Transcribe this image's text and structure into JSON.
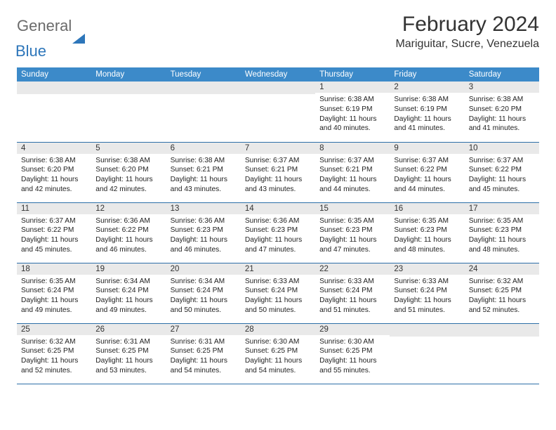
{
  "brand": {
    "part1": "General",
    "part2": "Blue"
  },
  "title": "February 2024",
  "location": "Mariguitar, Sucre, Venezuela",
  "colors": {
    "header_bg": "#3c8ac9",
    "header_fg": "#ffffff",
    "daynum_bg": "#e9e9e9",
    "row_border": "#2d6fa8",
    "brand_gray": "#6b6b6b",
    "brand_blue": "#2d76ba"
  },
  "day_names": [
    "Sunday",
    "Monday",
    "Tuesday",
    "Wednesday",
    "Thursday",
    "Friday",
    "Saturday"
  ],
  "weeks": [
    [
      null,
      null,
      null,
      null,
      {
        "n": "1",
        "sr": "Sunrise: 6:38 AM",
        "ss": "Sunset: 6:19 PM",
        "dl1": "Daylight: 11 hours",
        "dl2": "and 40 minutes."
      },
      {
        "n": "2",
        "sr": "Sunrise: 6:38 AM",
        "ss": "Sunset: 6:19 PM",
        "dl1": "Daylight: 11 hours",
        "dl2": "and 41 minutes."
      },
      {
        "n": "3",
        "sr": "Sunrise: 6:38 AM",
        "ss": "Sunset: 6:20 PM",
        "dl1": "Daylight: 11 hours",
        "dl2": "and 41 minutes."
      }
    ],
    [
      {
        "n": "4",
        "sr": "Sunrise: 6:38 AM",
        "ss": "Sunset: 6:20 PM",
        "dl1": "Daylight: 11 hours",
        "dl2": "and 42 minutes."
      },
      {
        "n": "5",
        "sr": "Sunrise: 6:38 AM",
        "ss": "Sunset: 6:20 PM",
        "dl1": "Daylight: 11 hours",
        "dl2": "and 42 minutes."
      },
      {
        "n": "6",
        "sr": "Sunrise: 6:38 AM",
        "ss": "Sunset: 6:21 PM",
        "dl1": "Daylight: 11 hours",
        "dl2": "and 43 minutes."
      },
      {
        "n": "7",
        "sr": "Sunrise: 6:37 AM",
        "ss": "Sunset: 6:21 PM",
        "dl1": "Daylight: 11 hours",
        "dl2": "and 43 minutes."
      },
      {
        "n": "8",
        "sr": "Sunrise: 6:37 AM",
        "ss": "Sunset: 6:21 PM",
        "dl1": "Daylight: 11 hours",
        "dl2": "and 44 minutes."
      },
      {
        "n": "9",
        "sr": "Sunrise: 6:37 AM",
        "ss": "Sunset: 6:22 PM",
        "dl1": "Daylight: 11 hours",
        "dl2": "and 44 minutes."
      },
      {
        "n": "10",
        "sr": "Sunrise: 6:37 AM",
        "ss": "Sunset: 6:22 PM",
        "dl1": "Daylight: 11 hours",
        "dl2": "and 45 minutes."
      }
    ],
    [
      {
        "n": "11",
        "sr": "Sunrise: 6:37 AM",
        "ss": "Sunset: 6:22 PM",
        "dl1": "Daylight: 11 hours",
        "dl2": "and 45 minutes."
      },
      {
        "n": "12",
        "sr": "Sunrise: 6:36 AM",
        "ss": "Sunset: 6:22 PM",
        "dl1": "Daylight: 11 hours",
        "dl2": "and 46 minutes."
      },
      {
        "n": "13",
        "sr": "Sunrise: 6:36 AM",
        "ss": "Sunset: 6:23 PM",
        "dl1": "Daylight: 11 hours",
        "dl2": "and 46 minutes."
      },
      {
        "n": "14",
        "sr": "Sunrise: 6:36 AM",
        "ss": "Sunset: 6:23 PM",
        "dl1": "Daylight: 11 hours",
        "dl2": "and 47 minutes."
      },
      {
        "n": "15",
        "sr": "Sunrise: 6:35 AM",
        "ss": "Sunset: 6:23 PM",
        "dl1": "Daylight: 11 hours",
        "dl2": "and 47 minutes."
      },
      {
        "n": "16",
        "sr": "Sunrise: 6:35 AM",
        "ss": "Sunset: 6:23 PM",
        "dl1": "Daylight: 11 hours",
        "dl2": "and 48 minutes."
      },
      {
        "n": "17",
        "sr": "Sunrise: 6:35 AM",
        "ss": "Sunset: 6:23 PM",
        "dl1": "Daylight: 11 hours",
        "dl2": "and 48 minutes."
      }
    ],
    [
      {
        "n": "18",
        "sr": "Sunrise: 6:35 AM",
        "ss": "Sunset: 6:24 PM",
        "dl1": "Daylight: 11 hours",
        "dl2": "and 49 minutes."
      },
      {
        "n": "19",
        "sr": "Sunrise: 6:34 AM",
        "ss": "Sunset: 6:24 PM",
        "dl1": "Daylight: 11 hours",
        "dl2": "and 49 minutes."
      },
      {
        "n": "20",
        "sr": "Sunrise: 6:34 AM",
        "ss": "Sunset: 6:24 PM",
        "dl1": "Daylight: 11 hours",
        "dl2": "and 50 minutes."
      },
      {
        "n": "21",
        "sr": "Sunrise: 6:33 AM",
        "ss": "Sunset: 6:24 PM",
        "dl1": "Daylight: 11 hours",
        "dl2": "and 50 minutes."
      },
      {
        "n": "22",
        "sr": "Sunrise: 6:33 AM",
        "ss": "Sunset: 6:24 PM",
        "dl1": "Daylight: 11 hours",
        "dl2": "and 51 minutes."
      },
      {
        "n": "23",
        "sr": "Sunrise: 6:33 AM",
        "ss": "Sunset: 6:24 PM",
        "dl1": "Daylight: 11 hours",
        "dl2": "and 51 minutes."
      },
      {
        "n": "24",
        "sr": "Sunrise: 6:32 AM",
        "ss": "Sunset: 6:25 PM",
        "dl1": "Daylight: 11 hours",
        "dl2": "and 52 minutes."
      }
    ],
    [
      {
        "n": "25",
        "sr": "Sunrise: 6:32 AM",
        "ss": "Sunset: 6:25 PM",
        "dl1": "Daylight: 11 hours",
        "dl2": "and 52 minutes."
      },
      {
        "n": "26",
        "sr": "Sunrise: 6:31 AM",
        "ss": "Sunset: 6:25 PM",
        "dl1": "Daylight: 11 hours",
        "dl2": "and 53 minutes."
      },
      {
        "n": "27",
        "sr": "Sunrise: 6:31 AM",
        "ss": "Sunset: 6:25 PM",
        "dl1": "Daylight: 11 hours",
        "dl2": "and 54 minutes."
      },
      {
        "n": "28",
        "sr": "Sunrise: 6:30 AM",
        "ss": "Sunset: 6:25 PM",
        "dl1": "Daylight: 11 hours",
        "dl2": "and 54 minutes."
      },
      {
        "n": "29",
        "sr": "Sunrise: 6:30 AM",
        "ss": "Sunset: 6:25 PM",
        "dl1": "Daylight: 11 hours",
        "dl2": "and 55 minutes."
      },
      null,
      null
    ]
  ]
}
